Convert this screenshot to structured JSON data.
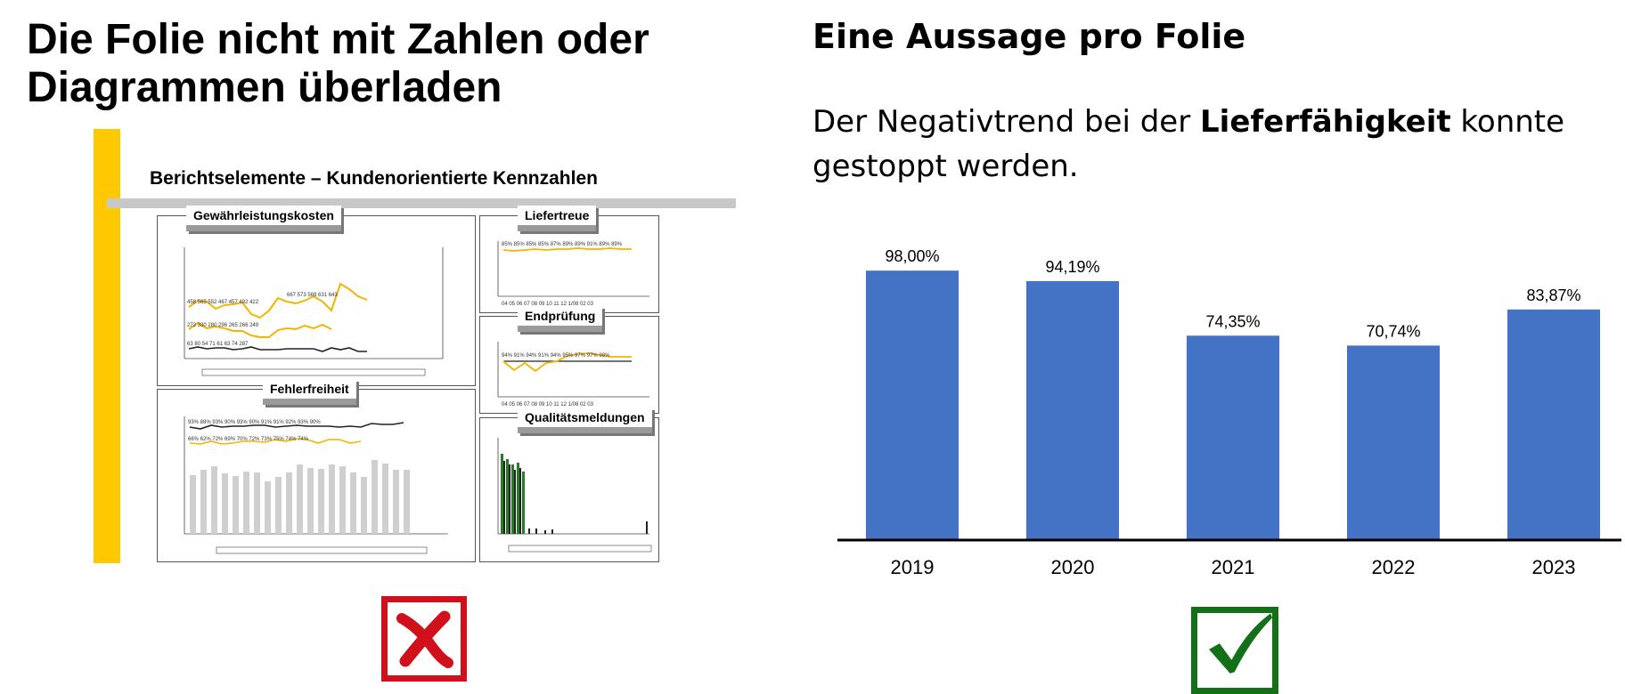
{
  "left": {
    "title_line1": "Die Folie nicht mit Zahlen oder",
    "title_line2": "Diagrammen überladen",
    "dashboard_title": "Berichtselemente – Kundenorientierte Kennzahlen",
    "panels": {
      "warranty": "Gewährleistungskosten",
      "delivery": "Liefertreue",
      "inspection": "Endprüfung",
      "defects": "Fehlerfreiheit",
      "quality": "Qualitätsmeldungen"
    },
    "mark_icon": "red-x-icon",
    "accent_color": "#ffc800"
  },
  "right": {
    "title": "Eine Aussage pro Folie",
    "statement_pre": "Der Negativtrend bei der ",
    "statement_bold": "Lieferfähigkeit",
    "statement_post": " konnte gestoppt werden.",
    "mark_icon": "green-check-icon"
  },
  "chart_data": {
    "type": "bar",
    "categories": [
      "2019",
      "2020",
      "2021",
      "2022",
      "2023"
    ],
    "values": [
      98.0,
      94.19,
      74.35,
      70.74,
      83.87
    ],
    "value_labels": [
      "98,00%",
      "94,19%",
      "74,35%",
      "70,74%",
      "83,87%"
    ],
    "bar_color": "#4472c4",
    "title": "",
    "xlabel": "",
    "ylabel": "",
    "ylim": [
      0,
      100
    ],
    "grid": false,
    "legend": "none"
  }
}
